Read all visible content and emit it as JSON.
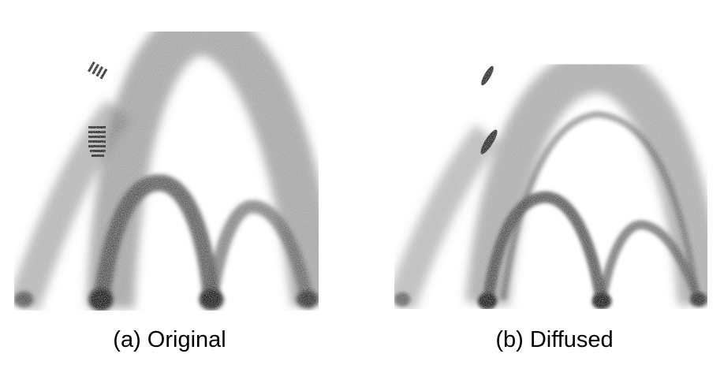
{
  "figures": [
    {
      "id": "a",
      "caption": "(a) Original",
      "style": "original"
    },
    {
      "id": "b",
      "caption": "(b) Diffused",
      "style": "diffused"
    }
  ],
  "colors": {
    "background": "#ffffff",
    "ink": "#000000"
  }
}
